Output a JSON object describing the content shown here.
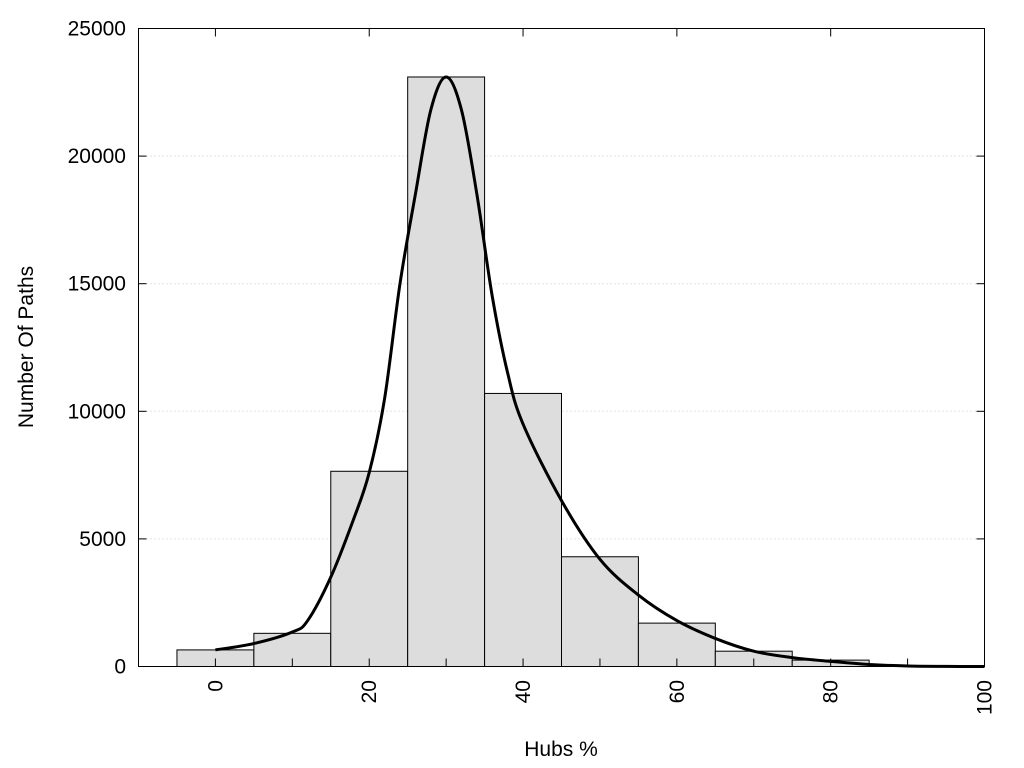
{
  "chart_data": {
    "type": "bar",
    "xlabel": "Hubs %",
    "ylabel": "Number Of Paths",
    "xlim": [
      -10,
      100
    ],
    "ylim": [
      0,
      25000
    ],
    "grid": true,
    "x_ticks": [
      0,
      20,
      40,
      60,
      80,
      100
    ],
    "y_ticks": [
      0,
      5000,
      10000,
      15000,
      20000,
      25000
    ],
    "bin_width": 10,
    "bins": [
      {
        "center": 0,
        "value": 650
      },
      {
        "center": 10,
        "value": 1300
      },
      {
        "center": 20,
        "value": 7650
      },
      {
        "center": 30,
        "value": 23100
      },
      {
        "center": 40,
        "value": 10700
      },
      {
        "center": 50,
        "value": 4300
      },
      {
        "center": 60,
        "value": 1700
      },
      {
        "center": 70,
        "value": 600
      },
      {
        "center": 80,
        "value": 250
      },
      {
        "center": 90,
        "value": 30
      }
    ],
    "curve": [
      [
        0,
        650
      ],
      [
        5,
        900
      ],
      [
        10,
        1350
      ],
      [
        12,
        1800
      ],
      [
        15,
        3500
      ],
      [
        18,
        5800
      ],
      [
        20,
        7600
      ],
      [
        22,
        10500
      ],
      [
        24,
        15000
      ],
      [
        26,
        18500
      ],
      [
        28,
        21800
      ],
      [
        30,
        23100
      ],
      [
        32,
        21800
      ],
      [
        34,
        18500
      ],
      [
        36,
        14500
      ],
      [
        38,
        11500
      ],
      [
        40,
        9500
      ],
      [
        45,
        6500
      ],
      [
        50,
        4200
      ],
      [
        55,
        2800
      ],
      [
        60,
        1800
      ],
      [
        65,
        1100
      ],
      [
        70,
        600
      ],
      [
        75,
        350
      ],
      [
        80,
        200
      ],
      [
        85,
        80
      ],
      [
        90,
        20
      ],
      [
        95,
        5
      ],
      [
        100,
        0
      ]
    ]
  }
}
